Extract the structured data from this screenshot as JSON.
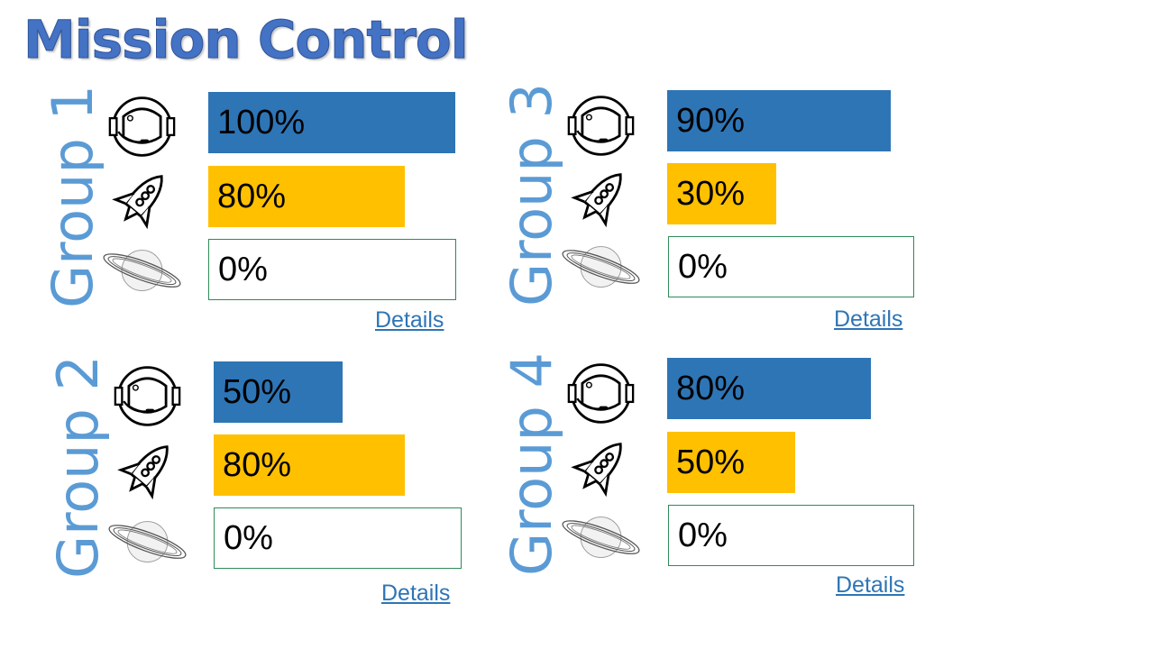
{
  "title": "Mission Control",
  "colors": {
    "astronaut_bar": "#2e75b6",
    "rocket_bar": "#ffc000",
    "planet_bar_border": "#2e8b57",
    "group_label": "#5b9bd5",
    "title": "#4472c4"
  },
  "icons": [
    "astronaut-helmet-icon",
    "rocket-icon",
    "planet-icon"
  ],
  "groups": [
    {
      "label": "Group 1",
      "astronaut": "100%",
      "rocket": "80%",
      "planet": "0%",
      "astronaut_value": 100,
      "rocket_value": 80,
      "planet_value": 0,
      "details_label": "Details"
    },
    {
      "label": "Group 2",
      "astronaut": "50%",
      "rocket": "80%",
      "planet": "0%",
      "astronaut_value": 50,
      "rocket_value": 80,
      "planet_value": 0,
      "details_label": "Details"
    },
    {
      "label": "Group 3",
      "astronaut": "90%",
      "rocket": "30%",
      "planet": "0%",
      "astronaut_value": 90,
      "rocket_value": 30,
      "planet_value": 0,
      "details_label": "Details"
    },
    {
      "label": "Group 4",
      "astronaut": "80%",
      "rocket": "50%",
      "planet": "0%",
      "astronaut_value": 80,
      "rocket_value": 50,
      "planet_value": 0,
      "details_label": "Details"
    }
  ]
}
